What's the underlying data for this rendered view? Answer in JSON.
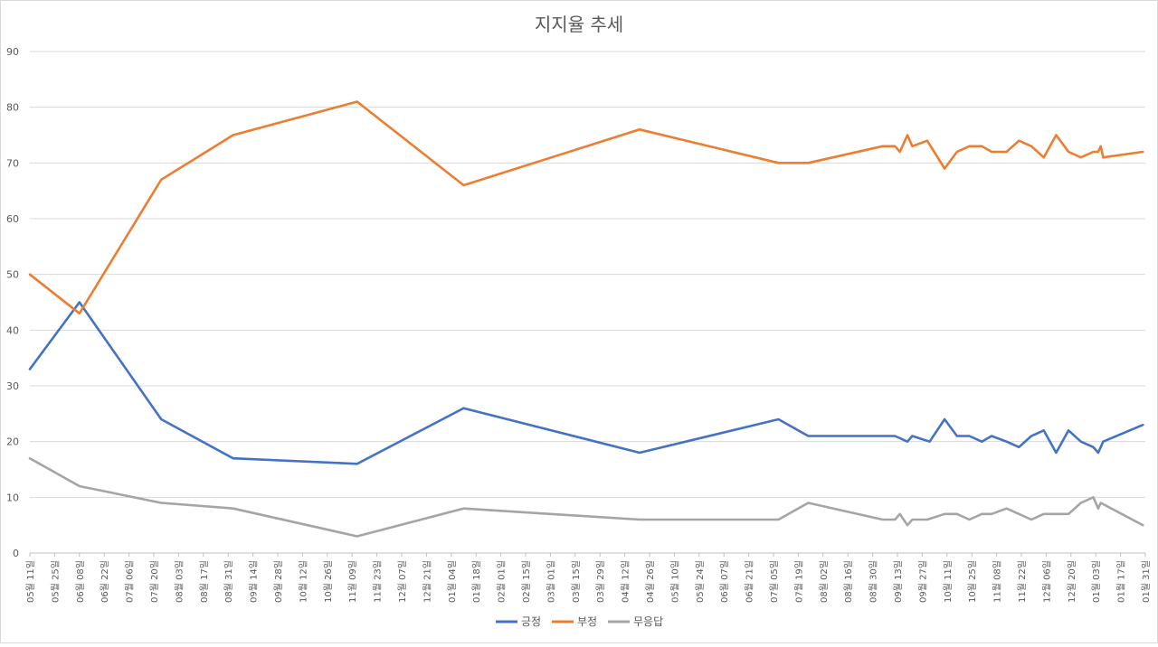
{
  "chart_data": {
    "type": "line",
    "title": "지지율 추세",
    "ylim": [
      0,
      90
    ],
    "yticks": [
      0,
      10,
      20,
      30,
      40,
      50,
      60,
      70,
      80,
      90
    ],
    "grid": true,
    "legend_position": "bottom-center",
    "xlabels": [
      "05월 11일",
      "05월 25일",
      "06월 08일",
      "06월 22일",
      "07월 06일",
      "07월 20일",
      "08월 03일",
      "08월 17일",
      "08월 31일",
      "09월 14일",
      "09월 28일",
      "10월 12일",
      "10월 26일",
      "11월 09일",
      "11월 23일",
      "12월 07일",
      "12월 21일",
      "01월 04일",
      "01월 18일",
      "02월 01일",
      "02월 15일",
      "03월 01일",
      "03월 15일",
      "03월 29일",
      "04월 12일",
      "04월 26일",
      "05월 10일",
      "05월 24일",
      "06월 07일",
      "06월 21일",
      "07월 05일",
      "07월 19일",
      "08월 02일",
      "08월 16일",
      "08월 30일",
      "09월 13일",
      "09월 27일",
      "10월 11일",
      "10월 25일",
      "11월 08일",
      "11월 22일",
      "12월 06일",
      "12월 20일",
      "01월 03일",
      "01월 17일",
      "01월 31일"
    ],
    "series": [
      {
        "name": "긍정",
        "color": "#4472C4",
        "points": [
          [
            0,
            33
          ],
          [
            2,
            45
          ],
          [
            5.3,
            24
          ],
          [
            8.2,
            17
          ],
          [
            13.2,
            16
          ],
          [
            17.5,
            26
          ],
          [
            24.6,
            18
          ],
          [
            30.2,
            24
          ],
          [
            31.4,
            21
          ],
          [
            34.9,
            21
          ],
          [
            35.4,
            20
          ],
          [
            35.6,
            21
          ],
          [
            36.3,
            20
          ],
          [
            36.9,
            24
          ],
          [
            37.4,
            21
          ],
          [
            37.9,
            21
          ],
          [
            38.4,
            20
          ],
          [
            38.8,
            21
          ],
          [
            39.4,
            20
          ],
          [
            39.9,
            19
          ],
          [
            40.4,
            21
          ],
          [
            40.9,
            22
          ],
          [
            41.4,
            18
          ],
          [
            41.9,
            22
          ],
          [
            42.4,
            20
          ],
          [
            42.9,
            19
          ],
          [
            43.1,
            18
          ],
          [
            43.2,
            19
          ],
          [
            43.3,
            20
          ],
          [
            44.9,
            23
          ]
        ]
      },
      {
        "name": "부정",
        "color": "#ED7D31",
        "points": [
          [
            0,
            50
          ],
          [
            2,
            43
          ],
          [
            5.3,
            67
          ],
          [
            8.2,
            75
          ],
          [
            13.2,
            81
          ],
          [
            17.5,
            66
          ],
          [
            24.6,
            76
          ],
          [
            30.2,
            70
          ],
          [
            31.4,
            70
          ],
          [
            34.4,
            73
          ],
          [
            34.9,
            73
          ],
          [
            35.1,
            72
          ],
          [
            35.4,
            75
          ],
          [
            35.6,
            73
          ],
          [
            36.2,
            74
          ],
          [
            36.9,
            69
          ],
          [
            37.4,
            72
          ],
          [
            37.9,
            73
          ],
          [
            38.4,
            73
          ],
          [
            38.8,
            72
          ],
          [
            39.4,
            72
          ],
          [
            39.9,
            74
          ],
          [
            40.4,
            73
          ],
          [
            40.9,
            71
          ],
          [
            41.4,
            75
          ],
          [
            41.9,
            72
          ],
          [
            42.4,
            71
          ],
          [
            42.9,
            72
          ],
          [
            43.1,
            72
          ],
          [
            43.2,
            73
          ],
          [
            43.3,
            71
          ],
          [
            44.9,
            72
          ]
        ]
      },
      {
        "name": "무응답",
        "color": "#A5A5A5",
        "points": [
          [
            0,
            17
          ],
          [
            2,
            12
          ],
          [
            5.3,
            9
          ],
          [
            8.2,
            8
          ],
          [
            13.2,
            3
          ],
          [
            17.5,
            8
          ],
          [
            24.6,
            6
          ],
          [
            30.2,
            6
          ],
          [
            31.4,
            9
          ],
          [
            34.4,
            6
          ],
          [
            34.9,
            6
          ],
          [
            35.1,
            7
          ],
          [
            35.4,
            5
          ],
          [
            35.6,
            6
          ],
          [
            36.2,
            6
          ],
          [
            36.9,
            7
          ],
          [
            37.4,
            7
          ],
          [
            37.9,
            6
          ],
          [
            38.4,
            7
          ],
          [
            38.8,
            7
          ],
          [
            39.4,
            8
          ],
          [
            39.9,
            7
          ],
          [
            40.4,
            6
          ],
          [
            40.9,
            7
          ],
          [
            41.4,
            7
          ],
          [
            41.9,
            7
          ],
          [
            42.4,
            9
          ],
          [
            42.9,
            10
          ],
          [
            43.1,
            8
          ],
          [
            43.2,
            9
          ],
          [
            44.9,
            5
          ]
        ]
      }
    ]
  }
}
